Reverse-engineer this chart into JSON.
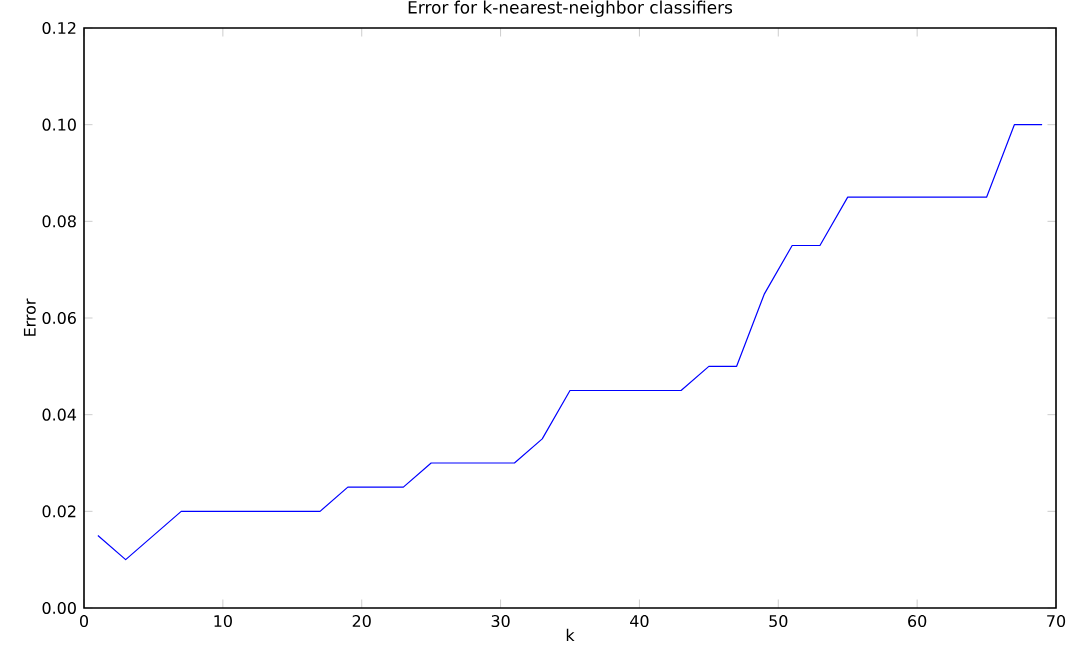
{
  "chart_data": {
    "type": "line",
    "title": "Error for k-nearest-neighbor classifiers",
    "xlabel": "k",
    "ylabel": "Error",
    "x": [
      1,
      3,
      7,
      17,
      19,
      23,
      25,
      31,
      33,
      35,
      43,
      45,
      47,
      49,
      51,
      53,
      55,
      65,
      67,
      69
    ],
    "series": [
      {
        "color": "#0000ff",
        "values": [
          0.015,
          0.01,
          0.02,
          0.02,
          0.025,
          0.025,
          0.03,
          0.03,
          0.035,
          0.045,
          0.045,
          0.05,
          0.05,
          0.065,
          0.075,
          0.075,
          0.085,
          0.085,
          0.1,
          0.1
        ]
      }
    ],
    "xlim": [
      0,
      70
    ],
    "ylim": [
      0,
      0.12
    ],
    "xticks": [
      0,
      10,
      20,
      30,
      40,
      50,
      60,
      70
    ],
    "yticks": [
      {
        "value": 0,
        "label": "0.00"
      },
      {
        "value": 0.02,
        "label": "0.02"
      },
      {
        "value": 0.04,
        "label": "0.04"
      },
      {
        "value": 0.06,
        "label": "0.06"
      },
      {
        "value": 0.08,
        "label": "0.08"
      },
      {
        "value": 0.1,
        "label": "0.10"
      },
      {
        "value": 0.12,
        "label": "0.12"
      }
    ],
    "grid": false,
    "marker": "none",
    "line_style": "solid"
  }
}
